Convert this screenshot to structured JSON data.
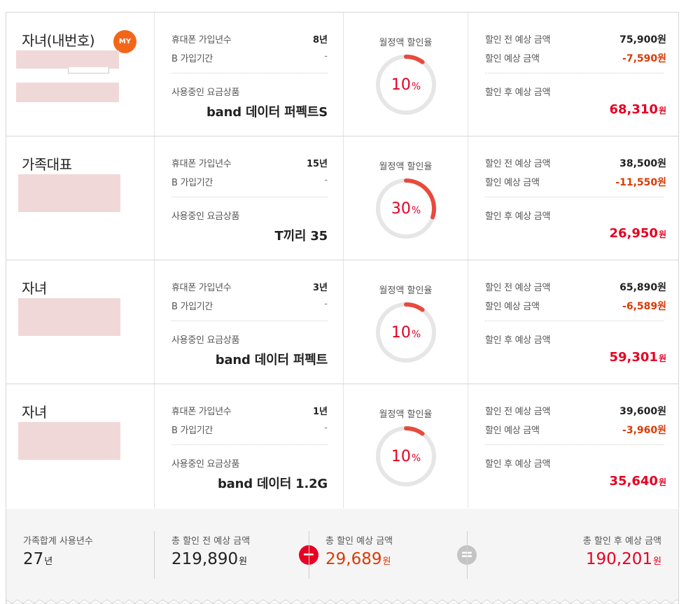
{
  "labels": {
    "join_years": "휴대폰 가입년수",
    "b_period": "B 가입기간",
    "current_plan": "사용중인 요금상품",
    "monthly_rate": "월정액 할인율",
    "before": "할인 전 예상 금액",
    "discount": "할인 예상 금액",
    "after": "할인 후 예상 금액",
    "won": "원"
  },
  "members": [
    {
      "role": "자녀(내번호)",
      "badge": "MY",
      "join_years": "8년",
      "b_period": "-",
      "plan": "band 데이터 퍼펙트S",
      "rate": 10,
      "rate_text": "10",
      "before": "75,900원",
      "discount": "-7,590원",
      "after": "68,310"
    },
    {
      "role": "가족대표",
      "badge": "",
      "join_years": "15년",
      "b_period": "-",
      "plan": "T끼리 35",
      "rate": 30,
      "rate_text": "30",
      "before": "38,500원",
      "discount": "-11,550원",
      "after": "26,950"
    },
    {
      "role": "자녀",
      "badge": "",
      "join_years": "3년",
      "b_period": "-",
      "plan": "band 데이터 퍼펙트",
      "rate": 10,
      "rate_text": "10",
      "before": "65,890원",
      "discount": "-6,589원",
      "after": "59,301"
    },
    {
      "role": "자녀",
      "badge": "",
      "join_years": "1년",
      "b_period": "-",
      "plan": "band 데이터 1.2G",
      "rate": 10,
      "rate_text": "10",
      "before": "39,600원",
      "discount": "-3,960원",
      "after": "35,640"
    }
  ],
  "summary": {
    "years_label": "가족합계 사용년수",
    "years_value": "27",
    "years_unit": "년",
    "before_label": "총 할인 전 예상 금액",
    "before_value": "219,890",
    "discount_label": "총 할인 예상 금액",
    "discount_value": "29,689",
    "after_label": "총 할인 후 예상 금액",
    "after_value": "190,201",
    "won": "원"
  },
  "colors": {
    "accent_red": "#e60023",
    "discount_orange": "#d83b05",
    "badge_orange": "#f2661a",
    "ring_track": "#e6e6e6"
  }
}
